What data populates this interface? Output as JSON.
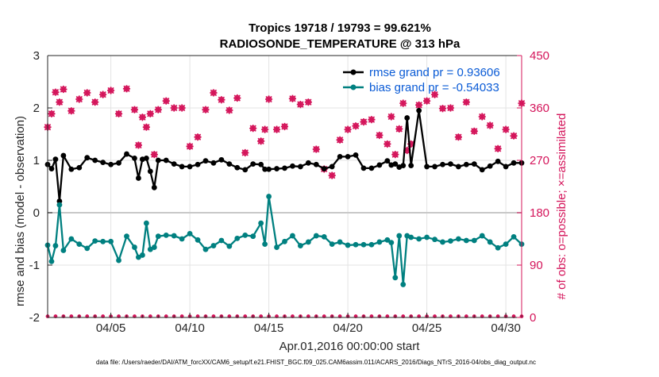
{
  "chart_data": {
    "type": "line",
    "title": "Tropics 19718 / 19793 = 99.621%",
    "subtitle": "RADIOSONDE_TEMPERATURE @ 313 hPa",
    "xlabel": "Apr.01,2016 00:00:00 start",
    "ylabel_left": "rmse and bias (model - observation)",
    "ylabel_right": "# of obs: o=possible; ×=assimilated",
    "xlim": [
      1,
      31
    ],
    "ylim_left": [
      -2,
      3
    ],
    "ylim_right": [
      0,
      450
    ],
    "x_tick_values": [
      5,
      10,
      15,
      20,
      25,
      30
    ],
    "x_tick_labels": [
      "04/05",
      "04/10",
      "04/15",
      "04/20",
      "04/25",
      "04/30"
    ],
    "y_left_ticks": [
      -2,
      -1,
      0,
      1,
      2,
      3
    ],
    "y_right_ticks": [
      0,
      90,
      180,
      270,
      360,
      450
    ],
    "grid": true,
    "legend_position": "top-right",
    "legend": [
      {
        "label": "rmse grand pr = 0.93606",
        "color": "#000000"
      },
      {
        "label": "bias grand pr = -0.54033",
        "color": "#008080"
      }
    ],
    "footer": "data file: /Users/raeder/DAI/ATM_forcXX/CAM6_setup/f.e21.FHIST_BGC.f09_025.CAM6assim.011/ACARS_2016/Diags_NTrS_2016-04/obs_diag_output.nc",
    "x": [
      1.0,
      1.25,
      1.5,
      1.75,
      2.0,
      2.5,
      3.0,
      3.5,
      4.0,
      4.5,
      5.0,
      5.5,
      6.0,
      6.5,
      6.75,
      7.0,
      7.25,
      7.5,
      7.75,
      8.0,
      8.5,
      9.0,
      9.5,
      10.0,
      10.5,
      11.0,
      11.5,
      12.0,
      12.5,
      13.0,
      13.5,
      14.0,
      14.5,
      14.75,
      15.0,
      15.5,
      16.0,
      16.5,
      17.0,
      17.5,
      18.0,
      18.5,
      19.0,
      19.5,
      20.0,
      20.5,
      21.0,
      21.5,
      22.0,
      22.5,
      22.75,
      23.0,
      23.25,
      23.5,
      23.75,
      24.0,
      24.5,
      25.0,
      25.5,
      26.0,
      26.5,
      27.0,
      27.5,
      28.0,
      28.5,
      29.0,
      29.5,
      30.0,
      30.5,
      31.0
    ],
    "series": [
      {
        "name": "rmse",
        "color": "#000000",
        "values": [
          0.92,
          0.84,
          1.02,
          0.22,
          1.09,
          0.83,
          0.86,
          1.05,
          1.0,
          0.96,
          0.92,
          0.95,
          1.12,
          1.04,
          0.66,
          1.02,
          1.04,
          0.79,
          0.48,
          1.0,
          1.0,
          0.93,
          0.88,
          0.88,
          0.92,
          0.99,
          0.95,
          1.01,
          0.93,
          0.86,
          0.82,
          0.93,
          0.92,
          0.83,
          0.83,
          0.84,
          0.85,
          0.89,
          0.88,
          0.95,
          0.92,
          0.84,
          0.88,
          1.07,
          1.07,
          1.1,
          0.85,
          0.85,
          0.91,
          0.99,
          0.91,
          0.93,
          0.87,
          0.9,
          1.81,
          0.9,
          1.95,
          0.88,
          0.88,
          0.92,
          0.93,
          0.88,
          0.92,
          0.93,
          0.82,
          0.89,
          0.98,
          0.88,
          0.95,
          0.95
        ]
      },
      {
        "name": "bias",
        "color": "#008080",
        "values": [
          -0.62,
          -0.93,
          -0.63,
          0.15,
          -0.72,
          -0.5,
          -0.6,
          -0.68,
          -0.54,
          -0.55,
          -0.55,
          -0.91,
          -0.45,
          -0.66,
          -0.85,
          -0.81,
          -0.2,
          -0.7,
          -0.66,
          -0.45,
          -0.43,
          -0.44,
          -0.5,
          -0.4,
          -0.52,
          -0.7,
          -0.63,
          -0.53,
          -0.64,
          -0.49,
          -0.43,
          -0.45,
          -0.2,
          -0.6,
          0.31,
          -0.66,
          -0.55,
          -0.44,
          -0.63,
          -0.56,
          -0.44,
          -0.46,
          -0.6,
          -0.56,
          -0.62,
          -0.61,
          -0.61,
          -0.61,
          -0.56,
          -0.52,
          -0.57,
          -1.24,
          -0.44,
          -1.37,
          -0.44,
          -0.47,
          -0.5,
          -0.47,
          -0.51,
          -0.56,
          -0.54,
          -0.5,
          -0.53,
          -0.53,
          -0.44,
          -0.56,
          -0.67,
          -0.6,
          -0.46,
          -0.6
        ]
      },
      {
        "name": "obs possible",
        "color": "#d4145a",
        "axis": "right",
        "values": [
          327,
          350,
          387,
          370,
          392,
          355,
          375,
          386,
          370,
          383,
          390,
          350,
          393,
          357,
          296,
          344,
          327,
          350,
          280,
          357,
          372,
          360,
          360,
          294,
          310,
          357,
          386,
          374,
          356,
          377,
          283,
          325,
          303,
          323,
          375,
          323,
          328,
          376,
          366,
          370,
          289,
          255,
          244,
          305,
          323,
          329,
          336,
          340,
          313,
          298,
          345,
          280,
          324,
          368,
          287,
          298,
          365,
          372,
          383,
          359,
          360,
          310,
          370,
          320,
          345,
          330,
          290,
          323,
          312,
          368
        ]
      },
      {
        "name": "obs assimilated",
        "color": "#d4145a",
        "axis": "right",
        "values": [
          327,
          350,
          387,
          370,
          392,
          355,
          375,
          386,
          370,
          383,
          390,
          350,
          393,
          357,
          296,
          344,
          327,
          350,
          280,
          357,
          372,
          360,
          360,
          294,
          310,
          357,
          386,
          374,
          356,
          377,
          283,
          325,
          303,
          323,
          375,
          323,
          328,
          376,
          366,
          370,
          289,
          255,
          244,
          305,
          323,
          329,
          336,
          340,
          313,
          298,
          345,
          280,
          324,
          368,
          287,
          298,
          365,
          372,
          383,
          359,
          360,
          310,
          370,
          320,
          345,
          330,
          290,
          323,
          312,
          368
        ]
      }
    ]
  }
}
